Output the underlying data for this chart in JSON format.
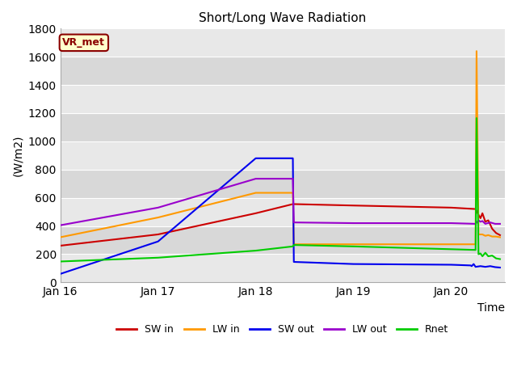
{
  "title": "Short/Long Wave Radiation",
  "xlabel": "Time",
  "ylabel": "(W/m2)",
  "ylim": [
    0,
    1800
  ],
  "annotation": "VR_met",
  "plot_bg_light": "#ebebeb",
  "plot_bg_dark": "#d8d8d8",
  "series": {
    "SW_in": {
      "color": "#cc0000",
      "label": "SW in",
      "x": [
        0.0,
        1.0,
        2.0,
        2.38,
        2.39,
        3.0,
        4.0,
        4.25,
        4.28,
        4.3,
        4.32,
        4.35,
        4.38,
        4.42,
        4.46,
        4.5
      ],
      "y": [
        260,
        340,
        490,
        555,
        555,
        545,
        530,
        520,
        480,
        455,
        490,
        430,
        440,
        380,
        350,
        335
      ]
    },
    "LW_in": {
      "color": "#ff9900",
      "label": "LW in",
      "x": [
        0.0,
        1.0,
        2.0,
        2.38,
        2.39,
        3.0,
        4.0,
        4.25,
        4.26,
        4.28,
        4.32,
        4.35,
        4.38,
        4.42,
        4.46,
        4.5
      ],
      "y": [
        320,
        460,
        635,
        635,
        270,
        270,
        270,
        270,
        1640,
        340,
        340,
        330,
        335,
        325,
        325,
        320
      ]
    },
    "SW_out": {
      "color": "#0000ee",
      "label": "SW out",
      "x": [
        0.0,
        1.0,
        2.0,
        2.38,
        2.39,
        3.0,
        4.0,
        4.2,
        4.21,
        4.23,
        4.25,
        4.3,
        4.35,
        4.4,
        4.45,
        4.5
      ],
      "y": [
        60,
        290,
        880,
        880,
        145,
        130,
        125,
        120,
        115,
        130,
        110,
        115,
        110,
        115,
        108,
        105
      ]
    },
    "LW_out": {
      "color": "#9900cc",
      "label": "LW out",
      "x": [
        0.0,
        1.0,
        2.0,
        2.38,
        2.39,
        3.0,
        4.0,
        4.25,
        4.28,
        4.3,
        4.32,
        4.35,
        4.4,
        4.45,
        4.5
      ],
      "y": [
        405,
        530,
        735,
        735,
        425,
        420,
        420,
        415,
        440,
        430,
        435,
        415,
        425,
        415,
        415
      ]
    },
    "Rnet": {
      "color": "#00cc00",
      "label": "Rnet",
      "x": [
        0.0,
        1.0,
        2.0,
        2.38,
        2.39,
        3.0,
        4.0,
        4.25,
        4.26,
        4.28,
        4.3,
        4.32,
        4.35,
        4.38,
        4.42,
        4.46,
        4.5
      ],
      "y": [
        148,
        175,
        225,
        255,
        265,
        255,
        235,
        230,
        1165,
        200,
        205,
        185,
        210,
        185,
        190,
        170,
        165
      ]
    }
  },
  "xticks": {
    "positions": [
      0.0,
      1.0,
      2.0,
      3.0,
      4.0
    ],
    "labels": [
      "Jan 16",
      "Jan 17",
      "Jan 18",
      "Jan 19",
      "Jan 20"
    ]
  },
  "yticks": [
    0,
    200,
    400,
    600,
    800,
    1000,
    1200,
    1400,
    1600,
    1800
  ]
}
